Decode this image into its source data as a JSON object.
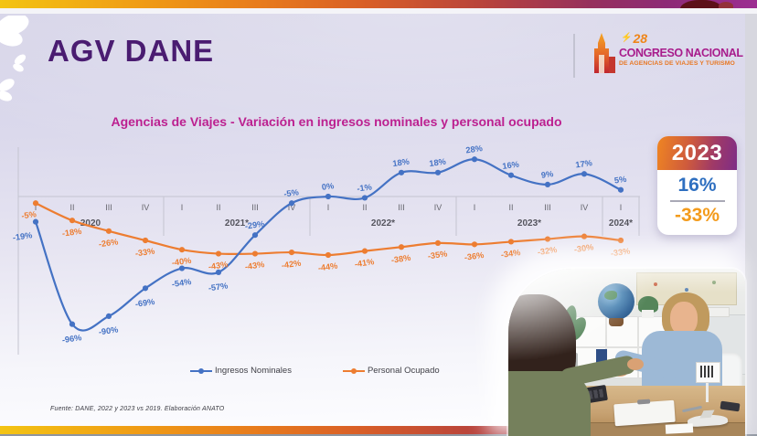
{
  "slide": {
    "title": "AGV DANE",
    "chart_title": "Agencias de Viajes - Variación en ingresos nominales y personal ocupado",
    "source": "Fuente: DANE, 2022 y 2023 vs 2019. Elaboración ANATO"
  },
  "logo": {
    "bolt": "⚡",
    "edition": "28",
    "title": "CONGRESO NACIONAL",
    "subtitle": "DE AGENCIAS DE VIAJES Y TURISMO"
  },
  "summary_badge": {
    "year": "2023",
    "ingresos_nominales": "16%",
    "personal_ocupado": "-33%"
  },
  "colors": {
    "ingresos": "#4472C4",
    "personal": "#ED7D31",
    "title_purple": "#4A1C71",
    "chart_title_magenta": "#BC2090",
    "logo_magenta": "#A81C8C",
    "logo_orange": "#E87722",
    "badge_blue": "#2E6FC0",
    "badge_orange": "#F39B1C"
  },
  "chart_data": {
    "type": "line",
    "title": "Agencias de Viajes - Variación en ingresos nominales y personal ocupado",
    "unit": "%",
    "grid": false,
    "legend_position": "bottom",
    "ylim": [
      -105,
      35
    ],
    "zero_axis": true,
    "x_groups": [
      {
        "year": "2020",
        "quarters": [
          "I",
          "II",
          "III",
          "IV"
        ]
      },
      {
        "year": "2021*",
        "quarters": [
          "I",
          "II",
          "III",
          "IV"
        ]
      },
      {
        "year": "2022*",
        "quarters": [
          "I",
          "II",
          "III",
          "IV"
        ]
      },
      {
        "year": "2023*",
        "quarters": [
          "I",
          "II",
          "III",
          "IV"
        ]
      },
      {
        "year": "2024*",
        "quarters": [
          "I"
        ]
      }
    ],
    "series": [
      {
        "name": "Ingresos Nominales",
        "color": "#4472C4",
        "values": [
          -19,
          -96,
          -90,
          -69,
          -54,
          -57,
          -29,
          -5,
          0,
          -1,
          18,
          18,
          28,
          16,
          9,
          17,
          5
        ]
      },
      {
        "name": "Personal Ocupado",
        "color": "#ED7D31",
        "values": [
          -5,
          -18,
          -26,
          -33,
          -40,
          -43,
          -43,
          -42,
          -44,
          -41,
          -38,
          -35,
          -36,
          -34,
          -32,
          -30,
          -33
        ]
      }
    ]
  },
  "photo": {
    "description": "Travel agent shaking hands with a client at a desk with globe, plants and toy airplane"
  }
}
